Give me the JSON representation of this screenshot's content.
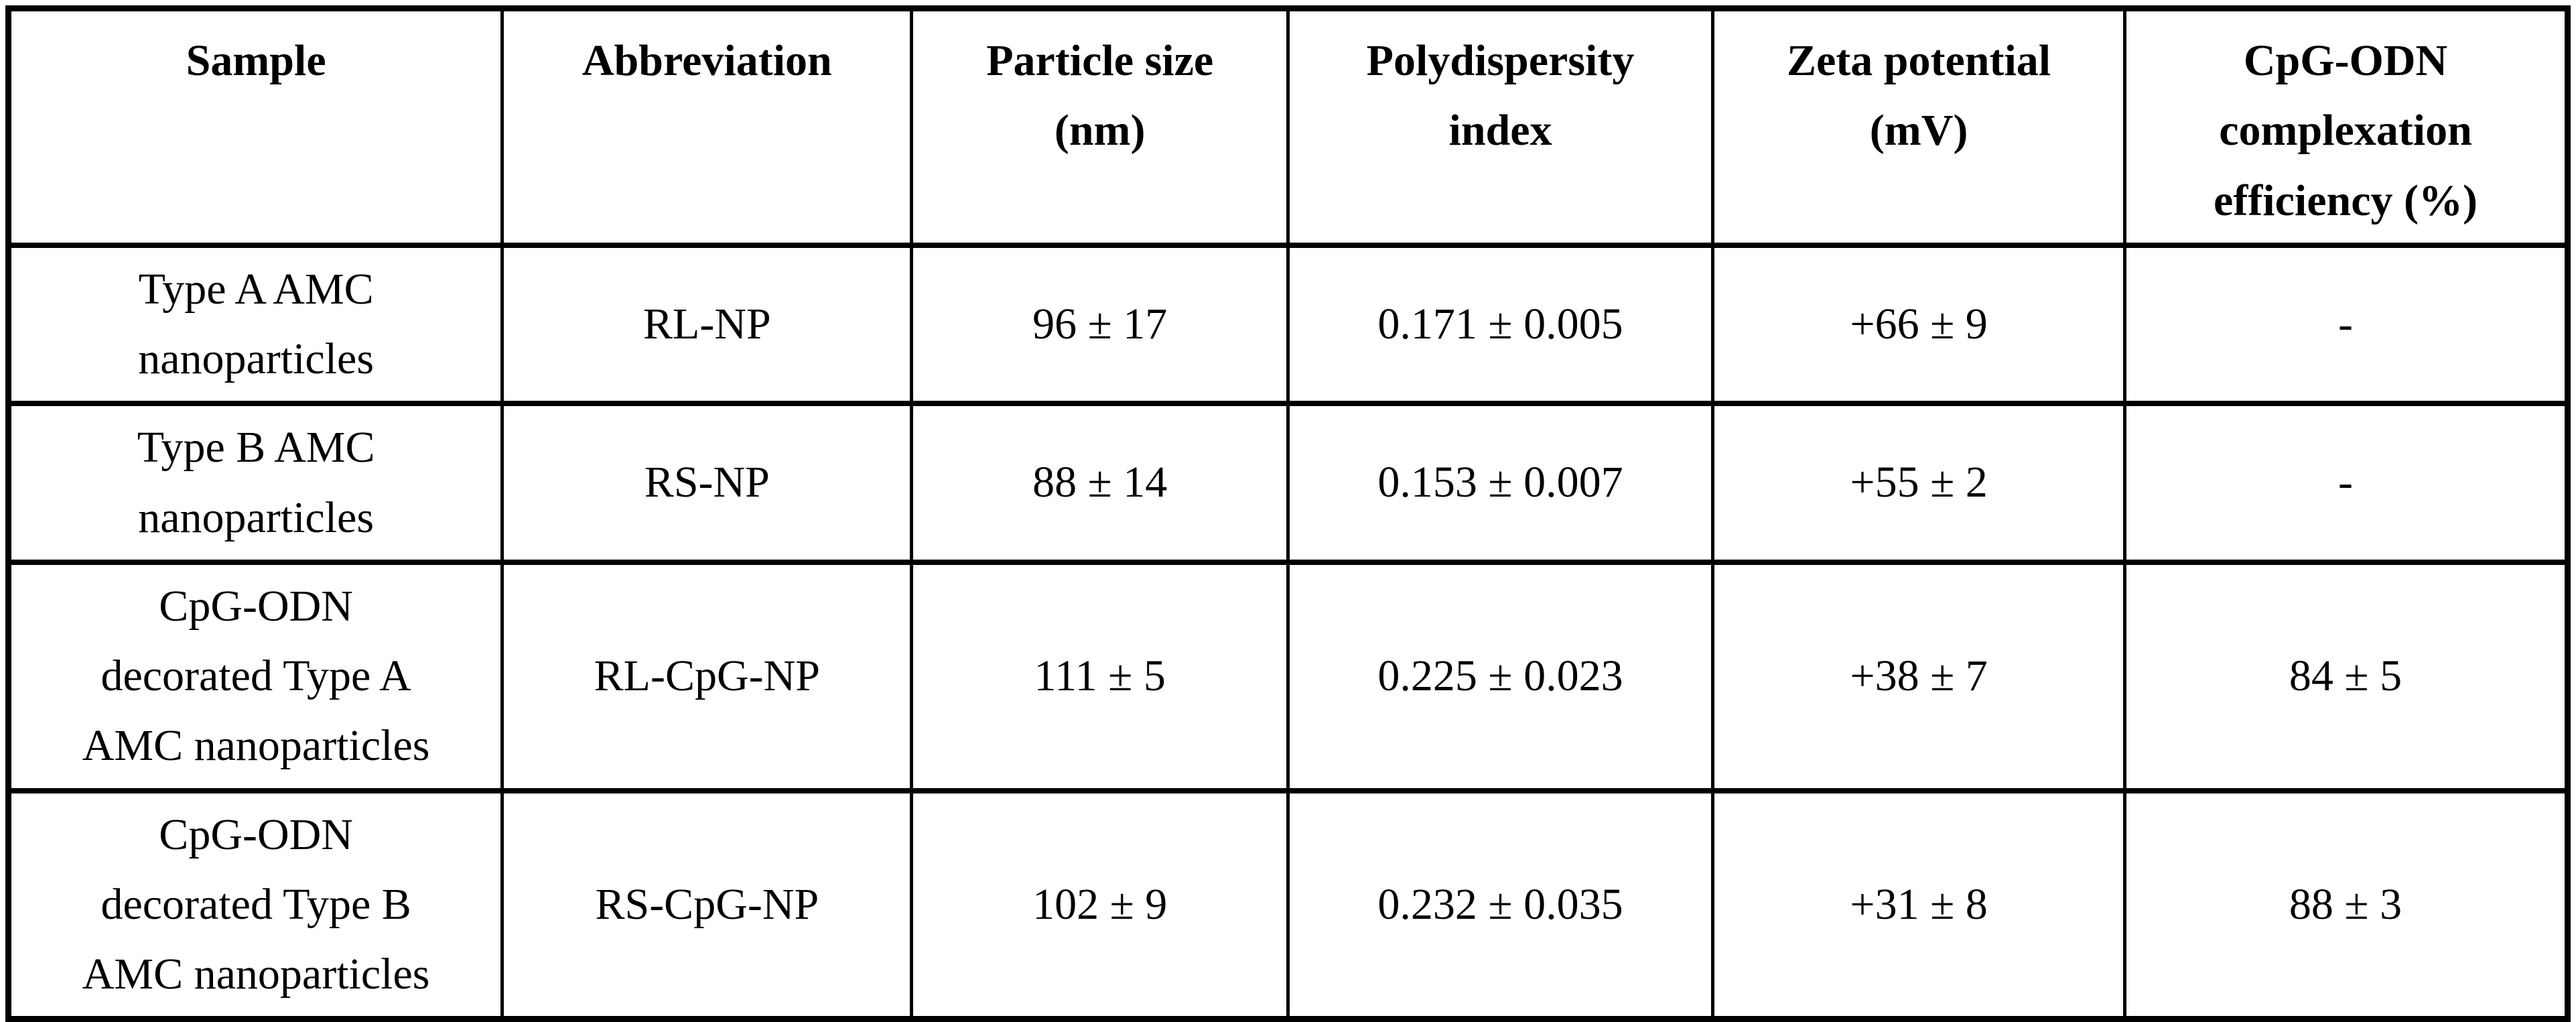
{
  "table": {
    "columns": [
      {
        "key": "sample",
        "label": "Sample"
      },
      {
        "key": "abbreviation",
        "label": "Abbreviation"
      },
      {
        "key": "particle_size",
        "label": "Particle size\n(nm)"
      },
      {
        "key": "pdi",
        "label": "Polydispersity\nindex"
      },
      {
        "key": "zeta",
        "label": "Zeta potential\n(mV)"
      },
      {
        "key": "cpg",
        "label": "CpG-ODN\ncomplexation\nefficiency (%)"
      }
    ],
    "rows": [
      {
        "sample": "Type A AMC\nnanoparticles",
        "abbreviation": "RL-NP",
        "particle_size": "96 ± 17",
        "pdi": "0.171 ± 0.005",
        "zeta": "+66 ± 9",
        "cpg": "-"
      },
      {
        "sample": "Type B AMC\nnanoparticles",
        "abbreviation": "RS-NP",
        "particle_size": "88 ± 14",
        "pdi": "0.153 ± 0.007",
        "zeta": "+55 ± 2",
        "cpg": "-"
      },
      {
        "sample": "CpG-ODN\ndecorated Type A\nAMC nanoparticles",
        "abbreviation": "RL-CpG-NP",
        "particle_size": "111 ± 5",
        "pdi": "0.225 ± 0.023",
        "zeta": "+38 ± 7",
        "cpg": "84 ± 5"
      },
      {
        "sample": "CpG-ODN\ndecorated Type B\nAMC nanoparticles",
        "abbreviation": "RS-CpG-NP",
        "particle_size": "102 ± 9",
        "pdi": "0.232 ± 0.035",
        "zeta": "+31 ± 8",
        "cpg": "88 ± 3"
      }
    ]
  },
  "colors": {
    "border": "#000000",
    "background": "#ffffff",
    "text": "#000000"
  }
}
